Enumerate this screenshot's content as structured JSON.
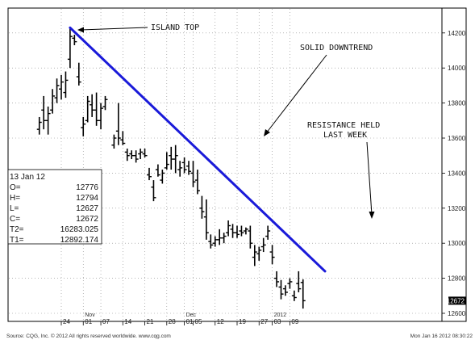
{
  "chart_data": {
    "type": "ohlc",
    "y_axis": {
      "min": 12600,
      "max": 14200,
      "ticks": [
        14200,
        14000,
        13800,
        13600,
        13400,
        13200,
        13000,
        12800,
        12600
      ],
      "side": "right"
    },
    "x_axis": {
      "ticks": [
        {
          "label": "24",
          "x": 0
        },
        {
          "label": "01",
          "x": 5
        },
        {
          "label": "07",
          "x": 9
        },
        {
          "label": "14",
          "x": 14
        },
        {
          "label": "21",
          "x": 19
        },
        {
          "label": "28",
          "x": 24
        },
        {
          "label": "01",
          "x": 28
        },
        {
          "label": "05",
          "x": 30
        },
        {
          "label": "12",
          "x": 35
        },
        {
          "label": "19",
          "x": 40
        },
        {
          "label": "27",
          "x": 45
        },
        {
          "label": "03",
          "x": 48
        },
        {
          "label": "09",
          "x": 52
        }
      ],
      "months": [
        {
          "label": "Nov",
          "x": 5
        },
        {
          "label": "Dec",
          "x": 28
        },
        {
          "label": "2012",
          "x": 48
        }
      ]
    },
    "bars": [
      {
        "x": -5,
        "o": 13650,
        "h": 13720,
        "l": 13620,
        "c": 13690
      },
      {
        "x": -4,
        "o": 13760,
        "h": 13840,
        "l": 13650,
        "c": 13700
      },
      {
        "x": -3,
        "o": 13700,
        "h": 13780,
        "l": 13620,
        "c": 13740
      },
      {
        "x": -2,
        "o": 13760,
        "h": 13880,
        "l": 13740,
        "c": 13840
      },
      {
        "x": -1,
        "o": 13830,
        "h": 13940,
        "l": 13800,
        "c": 13900
      },
      {
        "x": 0,
        "o": 13880,
        "h": 13960,
        "l": 13820,
        "c": 13920
      },
      {
        "x": 1,
        "o": 13860,
        "h": 13980,
        "l": 13830,
        "c": 13930
      },
      {
        "x": 2,
        "o": 14050,
        "h": 14230,
        "l": 14000,
        "c": 14180
      },
      {
        "x": 3,
        "o": 14170,
        "h": 14190,
        "l": 14130,
        "c": 14150
      },
      {
        "x": 4,
        "o": 13950,
        "h": 14030,
        "l": 13900,
        "c": 13920
      },
      {
        "x": 5,
        "o": 13660,
        "h": 13720,
        "l": 13610,
        "c": 13680
      },
      {
        "x": 6,
        "o": 13700,
        "h": 13840,
        "l": 13690,
        "c": 13810
      },
      {
        "x": 7,
        "o": 13790,
        "h": 13850,
        "l": 13720,
        "c": 13760
      },
      {
        "x": 8,
        "o": 13760,
        "h": 13860,
        "l": 13670,
        "c": 13700
      },
      {
        "x": 9,
        "o": 13700,
        "h": 13800,
        "l": 13650,
        "c": 13770
      },
      {
        "x": 10,
        "o": 13780,
        "h": 13840,
        "l": 13760,
        "c": 13820
      },
      {
        "x": 12,
        "o": 13560,
        "h": 13620,
        "l": 13540,
        "c": 13600
      },
      {
        "x": 13,
        "o": 13640,
        "h": 13800,
        "l": 13560,
        "c": 13600
      },
      {
        "x": 14,
        "o": 13590,
        "h": 13640,
        "l": 13560,
        "c": 13570
      },
      {
        "x": 15,
        "o": 13520,
        "h": 13540,
        "l": 13470,
        "c": 13500
      },
      {
        "x": 16,
        "o": 13510,
        "h": 13530,
        "l": 13480,
        "c": 13500
      },
      {
        "x": 17,
        "o": 13500,
        "h": 13530,
        "l": 13460,
        "c": 13480
      },
      {
        "x": 18,
        "o": 13510,
        "h": 13540,
        "l": 13480,
        "c": 13520
      },
      {
        "x": 19,
        "o": 13510,
        "h": 13540,
        "l": 13490,
        "c": 13500
      },
      {
        "x": 20,
        "o": 13390,
        "h": 13430,
        "l": 13360,
        "c": 13380
      },
      {
        "x": 21,
        "o": 13320,
        "h": 13360,
        "l": 13240,
        "c": 13260
      },
      {
        "x": 22,
        "o": 13420,
        "h": 13450,
        "l": 13380,
        "c": 13390
      },
      {
        "x": 23,
        "o": 13360,
        "h": 13420,
        "l": 13340,
        "c": 13400
      },
      {
        "x": 24,
        "o": 13430,
        "h": 13520,
        "l": 13420,
        "c": 13450
      },
      {
        "x": 25,
        "o": 13500,
        "h": 13550,
        "l": 13420,
        "c": 13480
      },
      {
        "x": 26,
        "o": 13480,
        "h": 13560,
        "l": 13400,
        "c": 13500
      },
      {
        "x": 27,
        "o": 13420,
        "h": 13470,
        "l": 13380,
        "c": 13430
      },
      {
        "x": 28,
        "o": 13460,
        "h": 13490,
        "l": 13400,
        "c": 13420
      },
      {
        "x": 29,
        "o": 13440,
        "h": 13470,
        "l": 13390,
        "c": 13410
      },
      {
        "x": 30,
        "o": 13400,
        "h": 13470,
        "l": 13320,
        "c": 13350
      },
      {
        "x": 31,
        "o": 13360,
        "h": 13420,
        "l": 13280,
        "c": 13300
      },
      {
        "x": 32,
        "o": 13200,
        "h": 13270,
        "l": 13140,
        "c": 13180
      },
      {
        "x": 33,
        "o": 13150,
        "h": 13250,
        "l": 13020,
        "c": 13060
      },
      {
        "x": 34,
        "o": 13010,
        "h": 13050,
        "l": 12970,
        "c": 12990
      },
      {
        "x": 35,
        "o": 13000,
        "h": 13040,
        "l": 12980,
        "c": 13020
      },
      {
        "x": 36,
        "o": 13020,
        "h": 13080,
        "l": 12990,
        "c": 13030
      },
      {
        "x": 37,
        "o": 13030,
        "h": 13060,
        "l": 13000,
        "c": 13040
      },
      {
        "x": 38,
        "o": 13060,
        "h": 13130,
        "l": 13040,
        "c": 13100
      },
      {
        "x": 39,
        "o": 13080,
        "h": 13110,
        "l": 13030,
        "c": 13060
      },
      {
        "x": 40,
        "o": 13060,
        "h": 13100,
        "l": 13030,
        "c": 13050
      },
      {
        "x": 41,
        "o": 13070,
        "h": 13100,
        "l": 13040,
        "c": 13060
      },
      {
        "x": 42,
        "o": 13070,
        "h": 13090,
        "l": 13050,
        "c": 13080
      },
      {
        "x": 43,
        "o": 13070,
        "h": 13100,
        "l": 12970,
        "c": 13000
      },
      {
        "x": 44,
        "o": 12920,
        "h": 12990,
        "l": 12870,
        "c": 12950
      },
      {
        "x": 45,
        "o": 12940,
        "h": 12980,
        "l": 12900,
        "c": 12960
      },
      {
        "x": 46,
        "o": 12980,
        "h": 13030,
        "l": 12950,
        "c": 12990
      },
      {
        "x": 47,
        "o": 13040,
        "h": 13100,
        "l": 13020,
        "c": 13070
      },
      {
        "x": 48,
        "o": 12950,
        "h": 12990,
        "l": 12880,
        "c": 12920
      },
      {
        "x": 49,
        "o": 12800,
        "h": 12840,
        "l": 12750,
        "c": 12780
      },
      {
        "x": 50,
        "o": 12750,
        "h": 12790,
        "l": 12680,
        "c": 12710
      },
      {
        "x": 51,
        "o": 12740,
        "h": 12760,
        "l": 12700,
        "c": 12720
      },
      {
        "x": 52,
        "o": 12770,
        "h": 12800,
        "l": 12740,
        "c": 12780
      },
      {
        "x": 53,
        "o": 12700,
        "h": 12730,
        "l": 12670,
        "c": 12690
      },
      {
        "x": 54,
        "o": 12770,
        "h": 12840,
        "l": 12720,
        "c": 12740
      },
      {
        "x": 55,
        "o": 12776,
        "h": 12794,
        "l": 12627,
        "c": 12672
      }
    ],
    "trendline": {
      "from": {
        "x": 2,
        "y": 14230
      },
      "to": {
        "x": 60,
        "y": 12840
      },
      "color": "#1a1ad9"
    },
    "last_price": "12672",
    "annotations": [
      {
        "id": "island",
        "text": "ISLAND TOP"
      },
      {
        "id": "downtrend",
        "text": "SOLID DOWNTREND"
      },
      {
        "id": "resistance1",
        "text": "RESISTANCE HELD"
      },
      {
        "id": "resistance2",
        "text": "LAST WEEK"
      }
    ]
  },
  "info_box": {
    "date": "13  Jan  12",
    "rows": [
      {
        "label": "O=",
        "value": "12776"
      },
      {
        "label": "H=",
        "value": "12794"
      },
      {
        "label": "L=",
        "value": "12627"
      },
      {
        "label": "C=",
        "value": "12672"
      },
      {
        "label": "T2=",
        "value": "16283.025"
      },
      {
        "label": "T1=",
        "value": "12892.174"
      }
    ]
  },
  "footer": {
    "source": "Source: CQG, Inc. © 2012 All rights reserved worldwide. www.cqg.com",
    "timestamp": "Mon Jan 16 2012 08:30:22"
  }
}
